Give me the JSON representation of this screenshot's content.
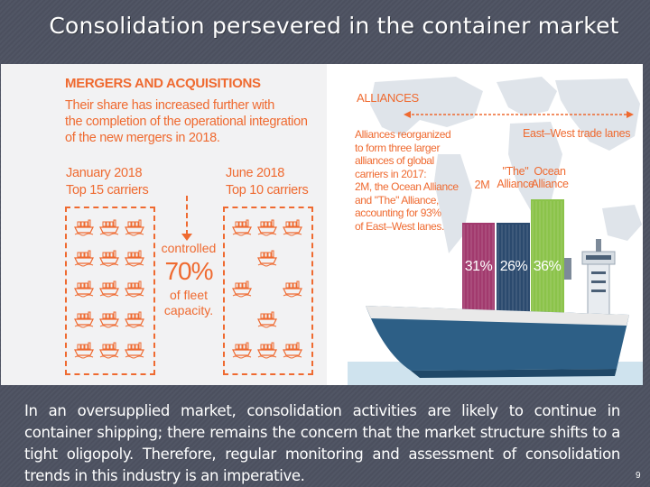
{
  "slide": {
    "title": "Consolidation persevered in the container market",
    "body": "In an oversupplied market, consolidation activities are likely to continue in container shipping; there remains the concern that the market structure shifts to a tight oligopoly. Therefore, regular monitoring and assessment of consolidation trends in this industry is an imperative.",
    "page_number": "9"
  },
  "infographic": {
    "mergers": {
      "title": "MERGERS AND ACQUISITIONS",
      "body_lines": [
        "Their share has increased further with",
        "the completion of the operational integration",
        "of the new mergers in 2018."
      ],
      "left_col": {
        "line1": "January 2018",
        "line2": "Top 15 carriers",
        "ship_count": 15
      },
      "right_col": {
        "line1": "June 2018",
        "line2": "Top 10 carriers",
        "ship_count": 10
      },
      "controlled": "controlled",
      "share": "70%",
      "fleet_line1": "of fleet",
      "fleet_line2": "capacity."
    },
    "alliances": {
      "title": "ALLIANCES",
      "body_lines": [
        "Alliances reorganized",
        "to form three larger",
        "alliances of global",
        "carriers in 2017:",
        "2M, the Ocean Alliance",
        "and \"The\" Alliance,",
        "accounting for 93%",
        "of East–West lanes."
      ],
      "lanes_label": "East–West trade lanes",
      "stacks": [
        {
          "name": "2M",
          "share": "31%",
          "color": "#a23a6e"
        },
        {
          "name_line1": "\"The\"",
          "name_line2": "Alliance",
          "share": "26%",
          "color": "#2b4a6e"
        },
        {
          "name_line1": "Ocean",
          "name_line2": "Alliance",
          "share": "36%",
          "color": "#8bc34a"
        }
      ]
    }
  },
  "colors": {
    "background": "#4d5261",
    "accent": "#ef6a30",
    "ship_hull": "#2d5f86",
    "ship_deck": "#e9e9e9"
  }
}
